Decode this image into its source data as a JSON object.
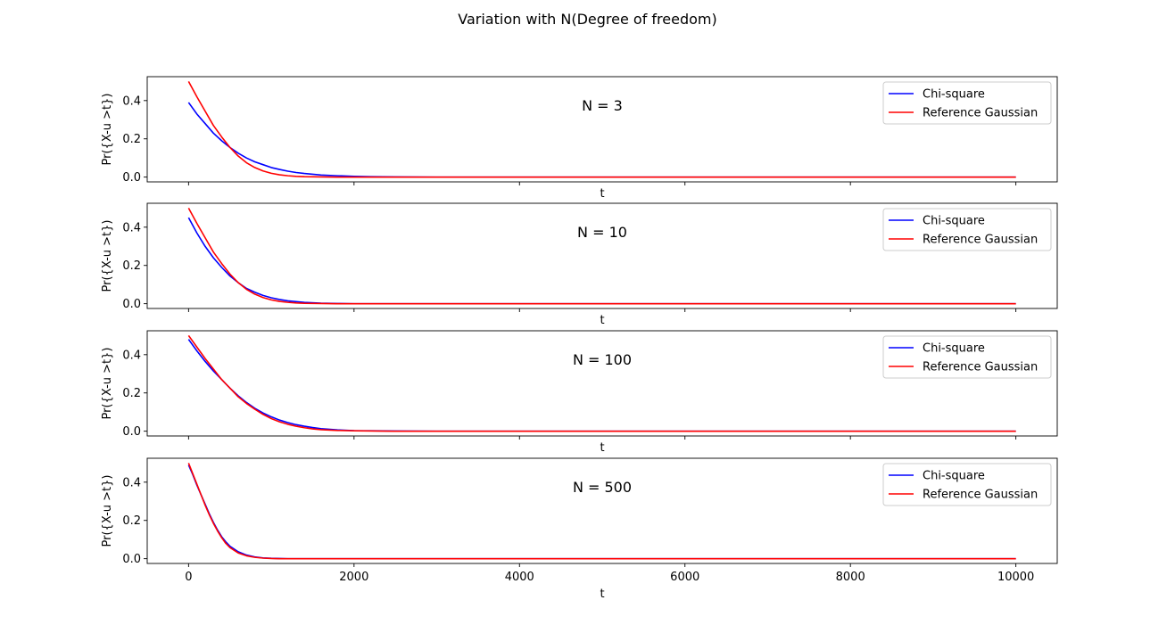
{
  "figure": {
    "title": "Variation with N(Degree of freedom)"
  },
  "chart_data": [
    {
      "type": "line",
      "annotation": "N = 3",
      "xlabel": "t",
      "ylabel": "Pr({X-u >t})",
      "xlim": [
        -500,
        10500
      ],
      "ylim": [
        -0.025,
        0.525
      ],
      "xticks": [
        0,
        2000,
        4000,
        6000,
        8000,
        10000
      ],
      "xticklabels_visible": false,
      "yticks": [
        0.0,
        0.2,
        0.4
      ],
      "yticklabels": [
        "0.0",
        "0.2",
        "0.4"
      ],
      "legend_position": "top-right",
      "series": [
        {
          "name": "Chi-square",
          "color": "#0000ff",
          "x": [
            0,
            100,
            200,
            300,
            400,
            500,
            600,
            700,
            800,
            900,
            1000,
            1100,
            1200,
            1300,
            1400,
            1500,
            1600,
            1800,
            2000,
            2200,
            2500,
            3000,
            4000,
            5000,
            6000,
            7000,
            8000,
            9000,
            10000
          ],
          "y": [
            0.39,
            0.33,
            0.28,
            0.23,
            0.19,
            0.155,
            0.125,
            0.1,
            0.08,
            0.065,
            0.05,
            0.04,
            0.031,
            0.024,
            0.019,
            0.015,
            0.011,
            0.007,
            0.004,
            0.002,
            0.001,
            0.0,
            0.0,
            0.0,
            0.0,
            0.0,
            0.0,
            0.0,
            0.0
          ]
        },
        {
          "name": "Reference Gaussian",
          "color": "#ff0000",
          "x": [
            0,
            100,
            200,
            300,
            400,
            500,
            600,
            700,
            800,
            900,
            1000,
            1100,
            1200,
            1300,
            1400,
            1600,
            1800,
            2000,
            2500,
            3000,
            4000,
            5000,
            6000,
            7000,
            8000,
            9000,
            10000
          ],
          "y": [
            0.5,
            0.42,
            0.345,
            0.27,
            0.21,
            0.155,
            0.11,
            0.075,
            0.05,
            0.032,
            0.02,
            0.012,
            0.007,
            0.004,
            0.002,
            0.001,
            0.0,
            0.0,
            0.0,
            0.0,
            0.0,
            0.0,
            0.0,
            0.0,
            0.0,
            0.0,
            0.0
          ]
        }
      ]
    },
    {
      "type": "line",
      "annotation": "N = 10",
      "xlabel": "t",
      "ylabel": "Pr({X-u >t})",
      "xlim": [
        -500,
        10500
      ],
      "ylim": [
        -0.025,
        0.525
      ],
      "xticks": [
        0,
        2000,
        4000,
        6000,
        8000,
        10000
      ],
      "xticklabels_visible": false,
      "yticks": [
        0.0,
        0.2,
        0.4
      ],
      "yticklabels": [
        "0.0",
        "0.2",
        "0.4"
      ],
      "legend_position": "top-right",
      "series": [
        {
          "name": "Chi-square",
          "color": "#0000ff",
          "x": [
            0,
            100,
            200,
            300,
            400,
            500,
            600,
            700,
            800,
            900,
            1000,
            1100,
            1200,
            1300,
            1400,
            1600,
            1800,
            2000,
            2500,
            3000,
            4000,
            5000,
            6000,
            7000,
            8000,
            9000,
            10000
          ],
          "y": [
            0.45,
            0.37,
            0.3,
            0.24,
            0.19,
            0.145,
            0.11,
            0.08,
            0.06,
            0.043,
            0.031,
            0.022,
            0.015,
            0.011,
            0.007,
            0.003,
            0.001,
            0.0,
            0.0,
            0.0,
            0.0,
            0.0,
            0.0,
            0.0,
            0.0,
            0.0,
            0.0
          ]
        },
        {
          "name": "Reference Gaussian",
          "color": "#ff0000",
          "x": [
            0,
            100,
            200,
            300,
            400,
            500,
            600,
            700,
            800,
            900,
            1000,
            1100,
            1200,
            1300,
            1400,
            1600,
            1800,
            2000,
            2500,
            3000,
            4000,
            5000,
            6000,
            7000,
            8000,
            9000,
            10000
          ],
          "y": [
            0.5,
            0.42,
            0.345,
            0.27,
            0.21,
            0.155,
            0.11,
            0.075,
            0.05,
            0.032,
            0.02,
            0.012,
            0.007,
            0.004,
            0.002,
            0.001,
            0.0,
            0.0,
            0.0,
            0.0,
            0.0,
            0.0,
            0.0,
            0.0,
            0.0,
            0.0,
            0.0
          ]
        }
      ]
    },
    {
      "type": "line",
      "annotation": "N = 100",
      "xlabel": "t",
      "ylabel": "Pr({X-u >t})",
      "xlim": [
        -500,
        10500
      ],
      "ylim": [
        -0.025,
        0.525
      ],
      "xticks": [
        0,
        2000,
        4000,
        6000,
        8000,
        10000
      ],
      "xticklabels_visible": false,
      "yticks": [
        0.0,
        0.2,
        0.4
      ],
      "yticklabels": [
        "0.0",
        "0.2",
        "0.4"
      ],
      "legend_position": "top-right",
      "series": [
        {
          "name": "Chi-square",
          "color": "#0000ff",
          "x": [
            0,
            100,
            200,
            300,
            400,
            500,
            600,
            700,
            800,
            900,
            1000,
            1100,
            1200,
            1300,
            1400,
            1500,
            1600,
            1800,
            2000,
            2200,
            2500,
            3000,
            4000,
            5000,
            6000,
            7000,
            8000,
            9000,
            10000
          ],
          "y": [
            0.48,
            0.42,
            0.365,
            0.315,
            0.27,
            0.225,
            0.185,
            0.15,
            0.12,
            0.095,
            0.075,
            0.058,
            0.045,
            0.034,
            0.026,
            0.019,
            0.013,
            0.007,
            0.003,
            0.002,
            0.001,
            0.0,
            0.0,
            0.0,
            0.0,
            0.0,
            0.0,
            0.0,
            0.0
          ]
        },
        {
          "name": "Reference Gaussian",
          "color": "#ff0000",
          "x": [
            0,
            100,
            200,
            300,
            400,
            500,
            600,
            700,
            800,
            900,
            1000,
            1100,
            1200,
            1300,
            1400,
            1500,
            1600,
            1800,
            2000,
            2500,
            3000,
            4000,
            5000,
            6000,
            7000,
            8000,
            9000,
            10000
          ],
          "y": [
            0.5,
            0.44,
            0.38,
            0.325,
            0.27,
            0.225,
            0.18,
            0.145,
            0.115,
            0.088,
            0.066,
            0.049,
            0.036,
            0.026,
            0.018,
            0.012,
            0.008,
            0.004,
            0.002,
            0.0,
            0.0,
            0.0,
            0.0,
            0.0,
            0.0,
            0.0,
            0.0,
            0.0
          ]
        }
      ]
    },
    {
      "type": "line",
      "annotation": "N = 500",
      "xlabel": "t",
      "ylabel": "Pr({X-u >t})",
      "xlim": [
        -500,
        10500
      ],
      "ylim": [
        -0.025,
        0.525
      ],
      "xticks": [
        0,
        2000,
        4000,
        6000,
        8000,
        10000
      ],
      "xticklabels_visible": true,
      "xticklabels": [
        "0",
        "2000",
        "4000",
        "6000",
        "8000",
        "10000"
      ],
      "yticks": [
        0.0,
        0.2,
        0.4
      ],
      "yticklabels": [
        "0.0",
        "0.2",
        "0.4"
      ],
      "legend_position": "top-right",
      "series": [
        {
          "name": "Chi-square",
          "color": "#0000ff",
          "x": [
            0,
            50,
            100,
            150,
            200,
            250,
            300,
            350,
            400,
            450,
            500,
            600,
            700,
            800,
            900,
            1000,
            1100,
            1200,
            1500,
            2000,
            3000,
            4000,
            5000,
            6000,
            7000,
            8000,
            9000,
            10000
          ],
          "y": [
            0.49,
            0.44,
            0.385,
            0.335,
            0.285,
            0.235,
            0.19,
            0.15,
            0.115,
            0.088,
            0.065,
            0.036,
            0.019,
            0.009,
            0.004,
            0.002,
            0.001,
            0.0,
            0.0,
            0.0,
            0.0,
            0.0,
            0.0,
            0.0,
            0.0,
            0.0,
            0.0,
            0.0
          ]
        },
        {
          "name": "Reference Gaussian",
          "color": "#ff0000",
          "x": [
            0,
            50,
            100,
            150,
            200,
            250,
            300,
            350,
            400,
            450,
            500,
            600,
            700,
            800,
            900,
            1000,
            1100,
            1200,
            1500,
            2000,
            3000,
            4000,
            5000,
            6000,
            7000,
            8000,
            9000,
            10000
          ],
          "y": [
            0.5,
            0.445,
            0.39,
            0.335,
            0.28,
            0.23,
            0.185,
            0.145,
            0.11,
            0.08,
            0.058,
            0.03,
            0.015,
            0.007,
            0.003,
            0.001,
            0.0,
            0.0,
            0.0,
            0.0,
            0.0,
            0.0,
            0.0,
            0.0,
            0.0,
            0.0,
            0.0,
            0.0
          ]
        }
      ]
    }
  ]
}
